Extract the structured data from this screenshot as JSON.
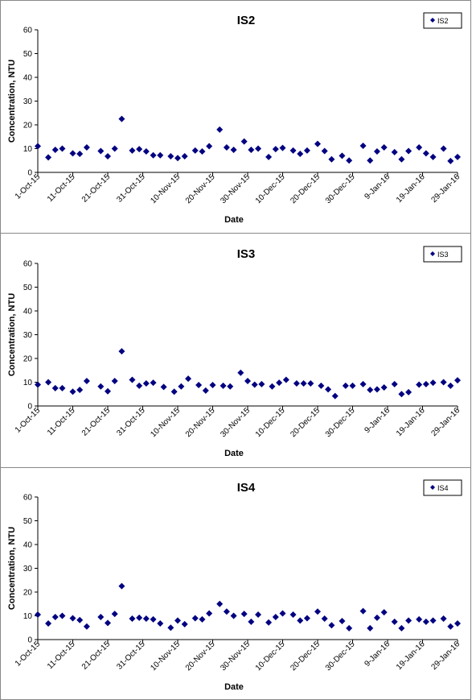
{
  "chart_data": [
    {
      "type": "scatter",
      "title": "IS2",
      "xlabel": "Date",
      "ylabel": "Concentration, NTU",
      "ylim": [
        0,
        60
      ],
      "yticks": [
        "0",
        "10",
        "20",
        "30",
        "40",
        "50",
        "60"
      ],
      "xticks": [
        "1-Oct-15",
        "11-Oct-15",
        "21-Oct-15",
        "31-Oct-15",
        "10-Nov-15",
        "20-Nov-15",
        "30-Nov-15",
        "10-Dec-15",
        "20-Dec-15",
        "30-Dec-15",
        "9-Jan-16",
        "19-Jan-16",
        "29-Jan-16"
      ],
      "xrange": [
        "2015-10-01",
        "2016-01-29"
      ],
      "legend": "top-right",
      "marker_color": "#000080",
      "series": [
        {
          "name": "IS2",
          "points": [
            [
              "2015-10-01",
              11
            ],
            [
              "2015-10-04",
              6.3
            ],
            [
              "2015-10-06",
              9.5
            ],
            [
              "2015-10-08",
              10
            ],
            [
              "2015-10-11",
              8
            ],
            [
              "2015-10-13",
              7.8
            ],
            [
              "2015-10-15",
              10.5
            ],
            [
              "2015-10-19",
              9
            ],
            [
              "2015-10-21",
              6.8
            ],
            [
              "2015-10-23",
              10
            ],
            [
              "2015-10-25",
              22.5
            ],
            [
              "2015-10-28",
              9.2
            ],
            [
              "2015-10-30",
              9.8
            ],
            [
              "2015-11-01",
              8.8
            ],
            [
              "2015-11-03",
              7.2
            ],
            [
              "2015-11-05",
              7.2
            ],
            [
              "2015-11-08",
              6.8
            ],
            [
              "2015-11-10",
              6
            ],
            [
              "2015-11-12",
              6.8
            ],
            [
              "2015-11-15",
              9.2
            ],
            [
              "2015-11-17",
              8.8
            ],
            [
              "2015-11-19",
              11
            ],
            [
              "2015-11-22",
              18
            ],
            [
              "2015-11-24",
              10.5
            ],
            [
              "2015-11-26",
              9.5
            ],
            [
              "2015-11-29",
              13
            ],
            [
              "2015-12-01",
              9.5
            ],
            [
              "2015-12-03",
              10
            ],
            [
              "2015-12-06",
              6.5
            ],
            [
              "2015-12-08",
              9.8
            ],
            [
              "2015-12-10",
              10.3
            ],
            [
              "2015-12-13",
              9.2
            ],
            [
              "2015-12-15",
              7.8
            ],
            [
              "2015-12-17",
              9.2
            ],
            [
              "2015-12-20",
              12
            ],
            [
              "2015-12-22",
              9
            ],
            [
              "2015-12-24",
              5.5
            ],
            [
              "2015-12-27",
              7
            ],
            [
              "2015-12-29",
              5
            ],
            [
              "2016-01-02",
              11.2
            ],
            [
              "2016-01-04",
              5
            ],
            [
              "2016-01-06",
              8.8
            ],
            [
              "2016-01-08",
              10.5
            ],
            [
              "2016-01-11",
              8.5
            ],
            [
              "2016-01-13",
              5.5
            ],
            [
              "2016-01-15",
              9
            ],
            [
              "2016-01-18",
              10.5
            ],
            [
              "2016-01-20",
              8
            ],
            [
              "2016-01-22",
              6.5
            ],
            [
              "2016-01-25",
              10
            ],
            [
              "2016-01-27",
              4.8
            ],
            [
              "2016-01-29",
              6.5
            ]
          ]
        }
      ]
    },
    {
      "type": "scatter",
      "title": "IS3",
      "xlabel": "Date",
      "ylabel": "Concentration, NTU",
      "ylim": [
        0,
        60
      ],
      "yticks": [
        "0",
        "10",
        "20",
        "30",
        "40",
        "50",
        "60"
      ],
      "xticks": [
        "1-Oct-15",
        "11-Oct-15",
        "21-Oct-15",
        "31-Oct-15",
        "10-Nov-15",
        "20-Nov-15",
        "30-Nov-15",
        "10-Dec-15",
        "20-Dec-15",
        "30-Dec-15",
        "9-Jan-16",
        "19-Jan-16",
        "29-Jan-16"
      ],
      "xrange": [
        "2015-10-01",
        "2016-01-29"
      ],
      "legend": "top-right",
      "marker_color": "#000080",
      "series": [
        {
          "name": "IS3",
          "points": [
            [
              "2015-10-01",
              9
            ],
            [
              "2015-10-04",
              10
            ],
            [
              "2015-10-06",
              7.5
            ],
            [
              "2015-10-08",
              7.5
            ],
            [
              "2015-10-11",
              6
            ],
            [
              "2015-10-13",
              6.8
            ],
            [
              "2015-10-15",
              10.5
            ],
            [
              "2015-10-19",
              8.2
            ],
            [
              "2015-10-21",
              6.2
            ],
            [
              "2015-10-23",
              10.5
            ],
            [
              "2015-10-25",
              23
            ],
            [
              "2015-10-28",
              11
            ],
            [
              "2015-10-30",
              8.5
            ],
            [
              "2015-11-01",
              9.5
            ],
            [
              "2015-11-03",
              9.8
            ],
            [
              "2015-11-06",
              8
            ],
            [
              "2015-11-09",
              6
            ],
            [
              "2015-11-11",
              8.2
            ],
            [
              "2015-11-13",
              11.5
            ],
            [
              "2015-11-16",
              8.8
            ],
            [
              "2015-11-18",
              6.5
            ],
            [
              "2015-11-20",
              8.8
            ],
            [
              "2015-11-23",
              8.5
            ],
            [
              "2015-11-25",
              8.2
            ],
            [
              "2015-11-28",
              14
            ],
            [
              "2015-11-30",
              10.5
            ],
            [
              "2015-12-02",
              9
            ],
            [
              "2015-12-04",
              9.2
            ],
            [
              "2015-12-07",
              8.2
            ],
            [
              "2015-12-09",
              9.8
            ],
            [
              "2015-12-11",
              11
            ],
            [
              "2015-12-14",
              9.5
            ],
            [
              "2015-12-16",
              9.5
            ],
            [
              "2015-12-18",
              9.5
            ],
            [
              "2015-12-21",
              8.5
            ],
            [
              "2015-12-23",
              7
            ],
            [
              "2015-12-25",
              4.2
            ],
            [
              "2015-12-28",
              8.5
            ],
            [
              "2015-12-30",
              8.5
            ],
            [
              "2016-01-02",
              9.2
            ],
            [
              "2016-01-04",
              6.8
            ],
            [
              "2016-01-06",
              7
            ],
            [
              "2016-01-08",
              7.8
            ],
            [
              "2016-01-11",
              9.2
            ],
            [
              "2016-01-13",
              5
            ],
            [
              "2016-01-15",
              5.8
            ],
            [
              "2016-01-18",
              9
            ],
            [
              "2016-01-20",
              9.2
            ],
            [
              "2016-01-22",
              9.8
            ],
            [
              "2016-01-25",
              10
            ],
            [
              "2016-01-27",
              8.5
            ],
            [
              "2016-01-29",
              10.8
            ]
          ]
        }
      ]
    },
    {
      "type": "scatter",
      "title": "IS4",
      "xlabel": "Date",
      "ylabel": "Concentration, NTU",
      "ylim": [
        0,
        60
      ],
      "yticks": [
        "0",
        "10",
        "20",
        "30",
        "40",
        "50",
        "60"
      ],
      "xticks": [
        "1-Oct-15",
        "11-Oct-15",
        "21-Oct-15",
        "31-Oct-15",
        "10-Nov-15",
        "20-Nov-15",
        "30-Nov-15",
        "10-Dec-15",
        "20-Dec-15",
        "30-Dec-15",
        "9-Jan-16",
        "19-Jan-16",
        "29-Jan-16"
      ],
      "xrange": [
        "2015-10-01",
        "2016-01-29"
      ],
      "legend": "top-right",
      "marker_color": "#000080",
      "series": [
        {
          "name": "IS4",
          "points": [
            [
              "2015-10-01",
              10.5
            ],
            [
              "2015-10-04",
              6.8
            ],
            [
              "2015-10-06",
              9.5
            ],
            [
              "2015-10-08",
              10
            ],
            [
              "2015-10-11",
              9
            ],
            [
              "2015-10-13",
              8.2
            ],
            [
              "2015-10-15",
              5.5
            ],
            [
              "2015-10-19",
              9.5
            ],
            [
              "2015-10-21",
              7
            ],
            [
              "2015-10-23",
              10.8
            ],
            [
              "2015-10-25",
              22.5
            ],
            [
              "2015-10-28",
              8.8
            ],
            [
              "2015-10-30",
              9.2
            ],
            [
              "2015-11-01",
              8.8
            ],
            [
              "2015-11-03",
              8.5
            ],
            [
              "2015-11-05",
              6.8
            ],
            [
              "2015-11-08",
              5
            ],
            [
              "2015-11-10",
              8
            ],
            [
              "2015-11-12",
              6.5
            ],
            [
              "2015-11-15",
              9
            ],
            [
              "2015-11-17",
              8.5
            ],
            [
              "2015-11-19",
              11
            ],
            [
              "2015-11-22",
              15
            ],
            [
              "2015-11-24",
              11.8
            ],
            [
              "2015-11-26",
              10
            ],
            [
              "2015-11-29",
              10.8
            ],
            [
              "2015-12-01",
              7.5
            ],
            [
              "2015-12-03",
              10.5
            ],
            [
              "2015-12-06",
              7.2
            ],
            [
              "2015-12-08",
              9.5
            ],
            [
              "2015-12-10",
              11
            ],
            [
              "2015-12-13",
              10.5
            ],
            [
              "2015-12-15",
              8
            ],
            [
              "2015-12-17",
              9
            ],
            [
              "2015-12-20",
              11.8
            ],
            [
              "2015-12-22",
              8.8
            ],
            [
              "2015-12-24",
              6
            ],
            [
              "2015-12-27",
              7.8
            ],
            [
              "2015-12-29",
              4.8
            ],
            [
              "2016-01-02",
              12
            ],
            [
              "2016-01-04",
              4.8
            ],
            [
              "2016-01-06",
              9.2
            ],
            [
              "2016-01-08",
              11.5
            ],
            [
              "2016-01-11",
              7.5
            ],
            [
              "2016-01-13",
              4.8
            ],
            [
              "2016-01-15",
              8
            ],
            [
              "2016-01-18",
              8.5
            ],
            [
              "2016-01-20",
              7.5
            ],
            [
              "2016-01-22",
              8
            ],
            [
              "2016-01-25",
              8.8
            ],
            [
              "2016-01-27",
              5.5
            ],
            [
              "2016-01-29",
              6.8
            ]
          ]
        }
      ]
    }
  ]
}
